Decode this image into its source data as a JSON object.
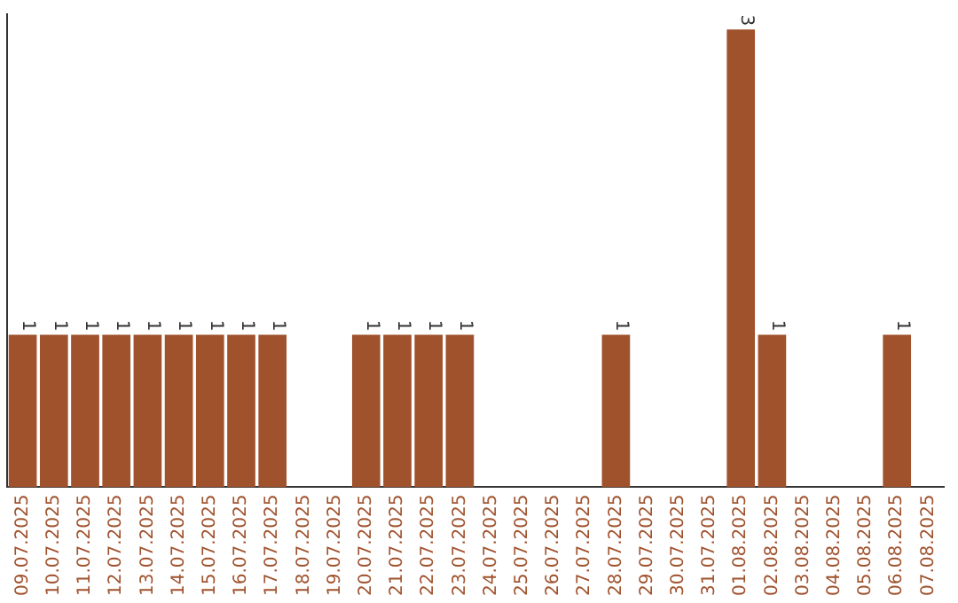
{
  "chart_data": {
    "type": "bar",
    "categories": [
      "09.07.2025",
      "10.07.2025",
      "11.07.2025",
      "12.07.2025",
      "13.07.2025",
      "14.07.2025",
      "15.07.2025",
      "16.07.2025",
      "17.07.2025",
      "18.07.2025",
      "19.07.2025",
      "20.07.2025",
      "21.07.2025",
      "22.07.2025",
      "23.07.2025",
      "24.07.2025",
      "25.07.2025",
      "26.07.2025",
      "27.07.2025",
      "28.07.2025",
      "29.07.2025",
      "30.07.2025",
      "31.07.2025",
      "01.08.2025",
      "02.08.2025",
      "03.08.2025",
      "04.08.2025",
      "05.08.2025",
      "06.08.2025",
      "07.08.2025"
    ],
    "values": [
      1,
      1,
      1,
      1,
      1,
      1,
      1,
      1,
      1,
      0,
      0,
      1,
      1,
      1,
      1,
      0,
      0,
      0,
      0,
      1,
      0,
      0,
      0,
      3,
      1,
      0,
      0,
      0,
      1,
      0
    ],
    "value_labels": [
      "1",
      "1",
      "1",
      "1",
      "1",
      "1",
      "1",
      "1",
      "1",
      null,
      null,
      "1",
      "1",
      "1",
      "1",
      null,
      null,
      null,
      null,
      "1",
      null,
      null,
      null,
      "3",
      "1",
      null,
      null,
      null,
      "1",
      null
    ],
    "color": "#a0522d",
    "ylim": [
      0,
      3.1
    ],
    "tick_labels": "x",
    "grid": false,
    "legend": false
  }
}
